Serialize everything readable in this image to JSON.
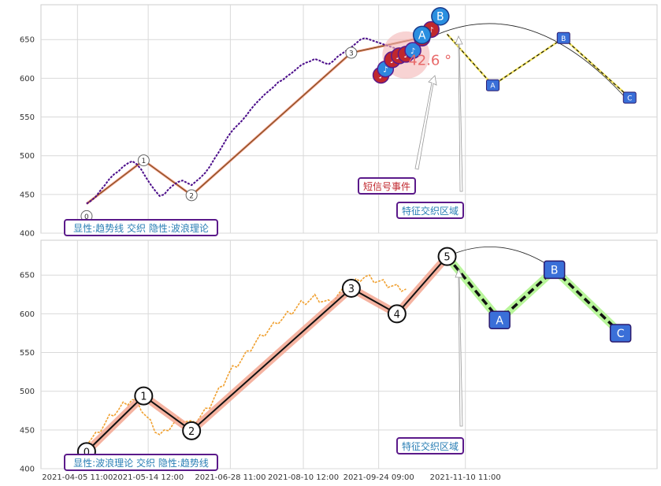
{
  "chart_data": [
    {
      "type": "line",
      "panel": "top",
      "ylim": [
        400,
        695
      ],
      "yticks": [
        400,
        450,
        500,
        550,
        600,
        650
      ],
      "grid": true,
      "price_x": [
        0,
        2,
        4,
        6,
        8,
        10,
        12,
        14,
        16,
        18,
        20,
        22,
        24,
        26,
        28,
        30,
        32,
        34,
        36,
        38,
        40,
        42,
        44,
        46,
        48,
        50,
        52,
        54,
        56,
        58,
        60,
        62,
        64,
        66,
        68,
        70,
        72,
        74,
        76,
        78,
        80,
        82,
        84,
        86,
        88,
        90,
        92,
        94,
        96,
        98,
        100,
        102,
        104,
        106,
        108,
        110,
        112,
        114,
        116,
        118,
        120,
        122,
        124,
        126,
        128,
        130,
        132,
        134,
        136,
        138,
        140
      ],
      "price_y": [
        438,
        442,
        447,
        455,
        462,
        470,
        476,
        480,
        486,
        490,
        493,
        489,
        482,
        472,
        463,
        455,
        448,
        450,
        457,
        462,
        466,
        468,
        465,
        462,
        467,
        472,
        478,
        486,
        496,
        505,
        515,
        525,
        533,
        539,
        545,
        552,
        560,
        567,
        573,
        579,
        584,
        589,
        595,
        598,
        603,
        607,
        612,
        617,
        620,
        622,
        625,
        623,
        620,
        618,
        622,
        628,
        632,
        636,
        640,
        645,
        650,
        652,
        650,
        648,
        646,
        644,
        642,
        640,
        638,
        637,
        636
      ],
      "wave_labels": [
        "0",
        "1",
        "2",
        "3"
      ],
      "wave_points": [
        [
          0,
          422
        ],
        [
          25,
          494
        ],
        [
          46,
          449
        ],
        [
          116,
          633
        ]
      ],
      "trend_points": [
        [
          0,
          438
        ],
        [
          25,
          494
        ],
        [
          46,
          449
        ],
        [
          116,
          633
        ],
        [
          154,
          657
        ]
      ],
      "forecast_labels": [
        "A",
        "B",
        "C"
      ],
      "forecast_points": [
        [
          158,
          657
        ],
        [
          178,
          591
        ],
        [
          209,
          652
        ],
        [
          238,
          575
        ]
      ],
      "event_markers": [
        "♪",
        "♪",
        "♪",
        "♬",
        "♪"
      ],
      "event_points": [
        [
          129,
          604
        ],
        [
          131,
          612
        ],
        [
          134,
          624
        ],
        [
          137,
          629
        ],
        [
          140,
          631
        ],
        [
          143,
          636
        ],
        [
          147,
          652
        ],
        [
          151,
          663
        ]
      ],
      "circle_labels": [
        "A",
        "B"
      ],
      "circle_points": [
        [
          147,
          656
        ],
        [
          155,
          680
        ]
      ],
      "angle_text": "42.6 °",
      "annotation_short": "短信号事件",
      "annotation_zone": "特征交织区域",
      "legend_text": "显性:趋势线 交织 隐性:波浪理论"
    },
    {
      "type": "line",
      "panel": "bottom",
      "ylim": [
        400,
        695
      ],
      "yticks": [
        400,
        450,
        500,
        550,
        600,
        650
      ],
      "grid": true,
      "wave_labels": [
        "0",
        "1",
        "2",
        "3",
        "4",
        "5"
      ],
      "wave_points": [
        [
          0,
          422
        ],
        [
          25,
          494
        ],
        [
          46,
          449
        ],
        [
          116,
          633
        ],
        [
          136,
          600
        ],
        [
          158,
          674
        ]
      ],
      "forecast_labels": [
        "A",
        "B",
        "C"
      ],
      "forecast_points": [
        [
          181,
          592
        ],
        [
          205,
          657
        ],
        [
          234,
          575
        ]
      ],
      "annotation_zone": "特征交织区域",
      "legend_text": "显性:波浪理论 交织 隐性:趋势线"
    }
  ],
  "x_axis": {
    "tick_labels": [
      "2021-04-05 11:00",
      "2021-05-14 12:00",
      "2021-06-28 11:00",
      "2021-08-10 12:00",
      "2021-09-24 09:00",
      "2021-11-10 11:00"
    ],
    "tick_positions": [
      -4,
      27,
      63,
      95,
      128,
      166
    ],
    "xlim": [
      -20,
      250
    ]
  }
}
